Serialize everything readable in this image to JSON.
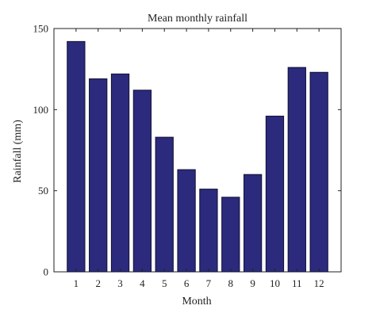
{
  "chart_data": {
    "type": "bar",
    "title": "Mean monthly rainfall",
    "xlabel": "Month",
    "ylabel": "Rainfall (mm)",
    "categories": [
      "1",
      "2",
      "3",
      "4",
      "5",
      "6",
      "7",
      "8",
      "9",
      "10",
      "11",
      "12"
    ],
    "values": [
      142,
      119,
      122,
      112,
      83,
      63,
      51,
      46,
      60,
      96,
      126,
      123
    ],
    "ylim": [
      0,
      150
    ],
    "yticks": [
      "0",
      "50",
      "100",
      "150"
    ],
    "grid": false,
    "legend": "none",
    "bar_color": "#2b2a7c",
    "bar_edge_color": "#111133"
  }
}
